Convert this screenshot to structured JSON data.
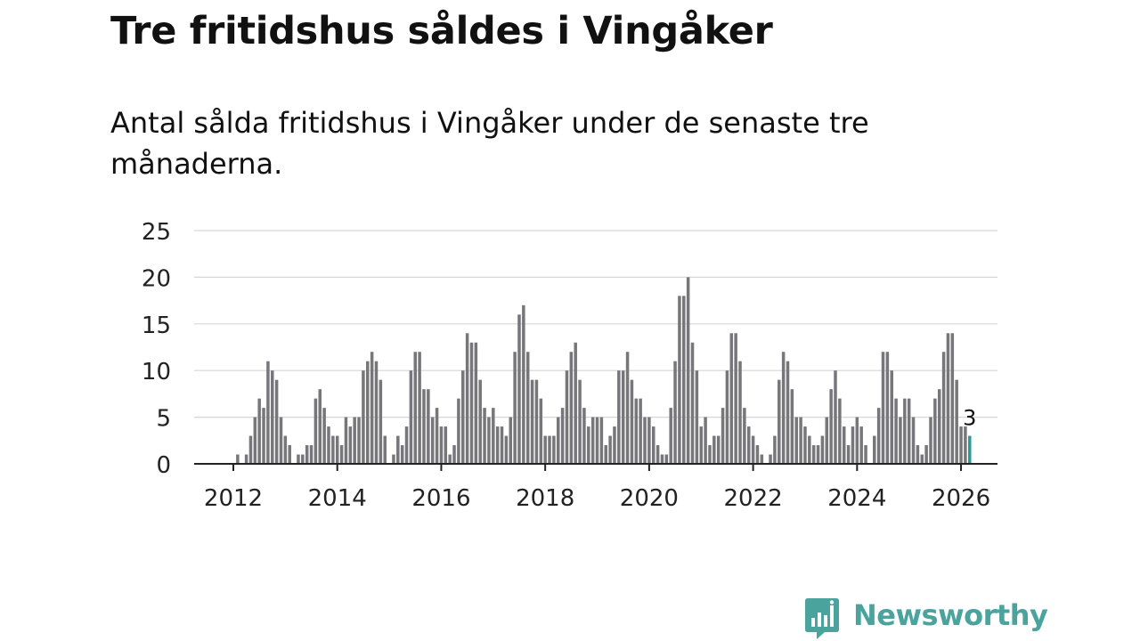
{
  "title": "Tre fritidshus såldes i Vingåker",
  "subtitle": "Antal sålda fritidshus i Vingåker under de senaste tre månaderna.",
  "brand": {
    "name": "Newsworthy",
    "icon": "newsworthy-logo-icon",
    "color": "#4aa39c"
  },
  "colors": {
    "bar": "#76767b",
    "highlight": "#2a9d95",
    "grid": "#d6d6d6",
    "axis": "#222222"
  },
  "chart_data": {
    "type": "bar",
    "grid": true,
    "x_start": "2012-01",
    "x_ticks": [
      "2012",
      "2014",
      "2016",
      "2018",
      "2020",
      "2022",
      "2024",
      "2026"
    ],
    "ylim": [
      0,
      25
    ],
    "y_ticks": [
      0,
      5,
      10,
      15,
      20,
      25
    ],
    "highlight_label": "3",
    "values": [
      0,
      1,
      0,
      1,
      3,
      5,
      7,
      6,
      11,
      10,
      9,
      5,
      3,
      2,
      0,
      1,
      1,
      2,
      2,
      7,
      8,
      6,
      4,
      3,
      3,
      2,
      5,
      4,
      5,
      5,
      10,
      11,
      12,
      11,
      9,
      3,
      0,
      1,
      3,
      2,
      4,
      10,
      12,
      12,
      8,
      8,
      5,
      6,
      4,
      4,
      1,
      2,
      7,
      10,
      14,
      13,
      13,
      9,
      6,
      5,
      6,
      4,
      4,
      3,
      5,
      12,
      16,
      17,
      12,
      9,
      9,
      7,
      3,
      3,
      3,
      5,
      6,
      10,
      12,
      13,
      9,
      6,
      4,
      5,
      5,
      5,
      2,
      3,
      4,
      10,
      10,
      12,
      9,
      7,
      7,
      5,
      5,
      4,
      2,
      1,
      1,
      6,
      11,
      18,
      18,
      20,
      13,
      10,
      4,
      5,
      2,
      3,
      3,
      6,
      10,
      14,
      14,
      11,
      6,
      4,
      3,
      2,
      1,
      0,
      1,
      3,
      9,
      12,
      11,
      8,
      5,
      5,
      4,
      3,
      2,
      2,
      3,
      5,
      8,
      10,
      7,
      4,
      2,
      4,
      5,
      4,
      2,
      0,
      3,
      6,
      12,
      12,
      10,
      7,
      5,
      7,
      7,
      5,
      2,
      1,
      2,
      5,
      7,
      8,
      12,
      14,
      14,
      9,
      4,
      4,
      3
    ]
  }
}
